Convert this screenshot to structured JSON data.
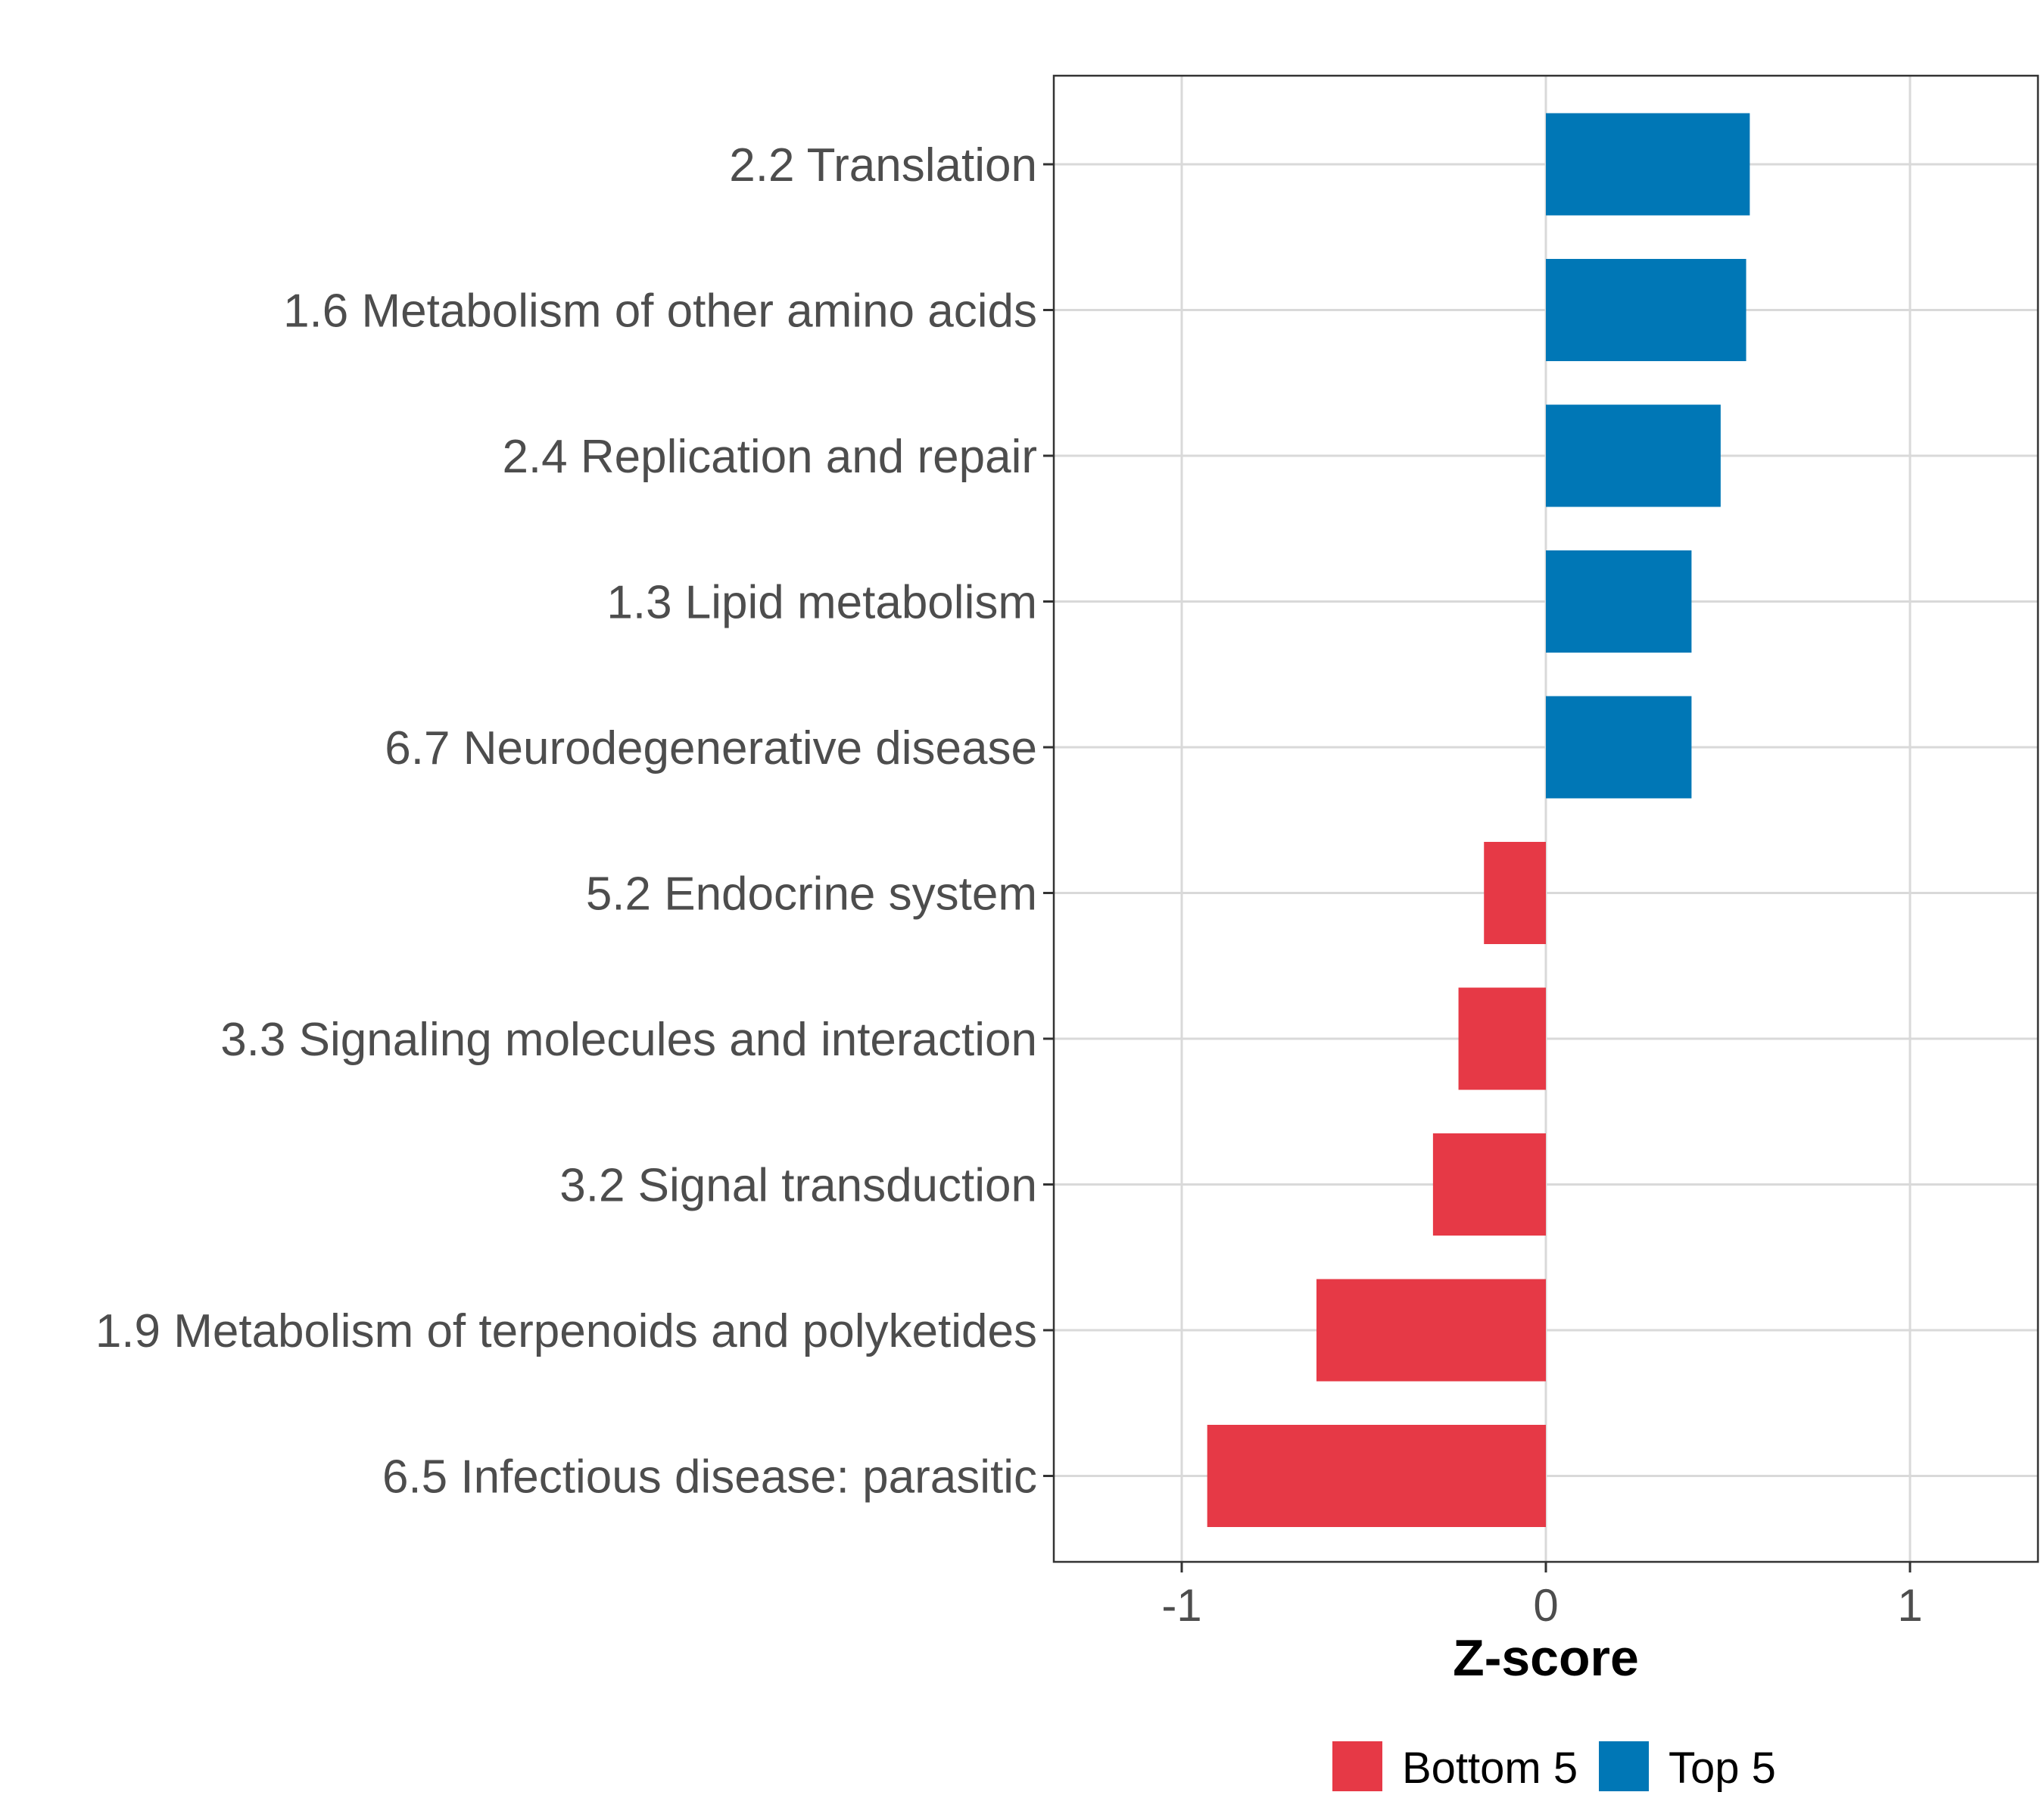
{
  "chart_data": {
    "type": "bar",
    "orientation": "horizontal",
    "title": "",
    "xlabel": "Z-score",
    "ylabel": "",
    "xlim": [
      -1.35,
      1.35
    ],
    "xticks": [
      -1,
      0,
      1
    ],
    "xtick_labels": [
      "-1",
      "0",
      "1"
    ],
    "grid": true,
    "categories": [
      "2.2 Translation",
      "1.6 Metabolism of other amino acids",
      "2.4 Replication and repair",
      "1.3 Lipid metabolism",
      "6.7 Neurodegenerative disease",
      "5.2 Endocrine system",
      "3.3 Signaling molecules and interaction",
      "3.2 Signal transduction",
      "1.9 Metabolism of terpenoids and polyketides",
      "6.5 Infectious disease: parasitic"
    ],
    "values": [
      0.56,
      0.55,
      0.48,
      0.4,
      0.4,
      -0.17,
      -0.24,
      -0.31,
      -0.63,
      -0.93
    ],
    "groups": [
      "Top 5",
      "Top 5",
      "Top 5",
      "Top 5",
      "Top 5",
      "Bottom 5",
      "Bottom 5",
      "Bottom 5",
      "Bottom 5",
      "Bottom 5"
    ],
    "legend": {
      "position": "bottom",
      "entries": [
        {
          "label": "Bottom 5",
          "color": "#e63946"
        },
        {
          "label": "Top 5",
          "color": "#0077b6"
        }
      ]
    }
  }
}
